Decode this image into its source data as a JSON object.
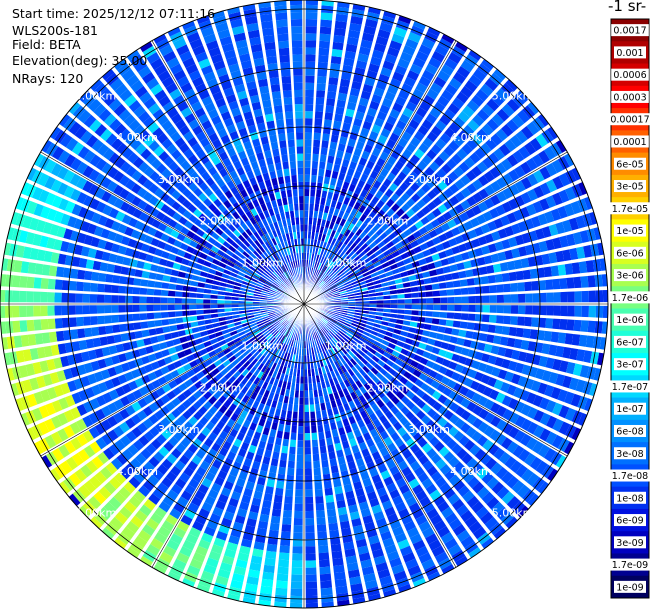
{
  "info": {
    "start_time": "Start time: 2025/12/12 07:11:16",
    "instrument": "WLS200s-181",
    "field": "Field: BETA",
    "elevation": "Elevation(deg): 35.00",
    "nrays": "NRays: 120"
  },
  "chart_data": {
    "type": "heatmap",
    "title": "",
    "colorbar": {
      "unit_label": "-1 sr-",
      "tick_labels": [
        "0.0017",
        "0.001",
        "0.0006",
        "0.0003",
        "0.00017",
        "0.0001",
        "6e-05",
        "3e-05",
        "1.7e-05",
        "1e-05",
        "6e-06",
        "3e-06",
        "1.7e-06",
        "1e-06",
        "6e-07",
        "3e-07",
        "1.7e-07",
        "1e-07",
        "6e-08",
        "3e-08",
        "1.7e-08",
        "1e-08",
        "6e-09",
        "3e-09",
        "1.7e-09",
        "1e-09"
      ],
      "colors": [
        "#8b0000",
        "#b00000",
        "#d40000",
        "#ff0000",
        "#ff3000",
        "#ff6000",
        "#ff8c00",
        "#ffb000",
        "#ffd000",
        "#ffff00",
        "#d8ff20",
        "#a8ff50",
        "#78ff80",
        "#48ffb0",
        "#20ffd8",
        "#00ffff",
        "#00d8ff",
        "#00b0ff",
        "#0090ff",
        "#0070ff",
        "#0050ff",
        "#0030f0",
        "#0010e0",
        "#0000c0",
        "#000090",
        "#000060"
      ]
    },
    "range_rings": [
      {
        "range_km": 1,
        "labels": [
          "1.00km",
          "1.00km",
          "1.00km",
          "1.00km"
        ]
      },
      {
        "range_km": 2,
        "labels": [
          "2.00km",
          "2.00km",
          "2.00km",
          "2.00km"
        ]
      },
      {
        "range_km": 3,
        "labels": [
          "3.00km",
          "3.00km",
          "3.00km",
          "3.00km"
        ]
      },
      {
        "range_km": 4,
        "labels": [
          "4.00km",
          "4.00km",
          "4.00km",
          "4.00km"
        ]
      },
      {
        "range_km": 5,
        "labels": [
          "5.00km",
          "5.00km",
          "5.00km",
          "5.00km"
        ]
      }
    ],
    "max_range_km": 5.8,
    "n_rays": 120,
    "background_level": "2e-08",
    "aerosol_band": {
      "range_km": [
        4.2,
        5.2
      ],
      "azimuth_deg": [
        180,
        300
      ],
      "peak_level": "3e-06"
    },
    "grid": true
  }
}
